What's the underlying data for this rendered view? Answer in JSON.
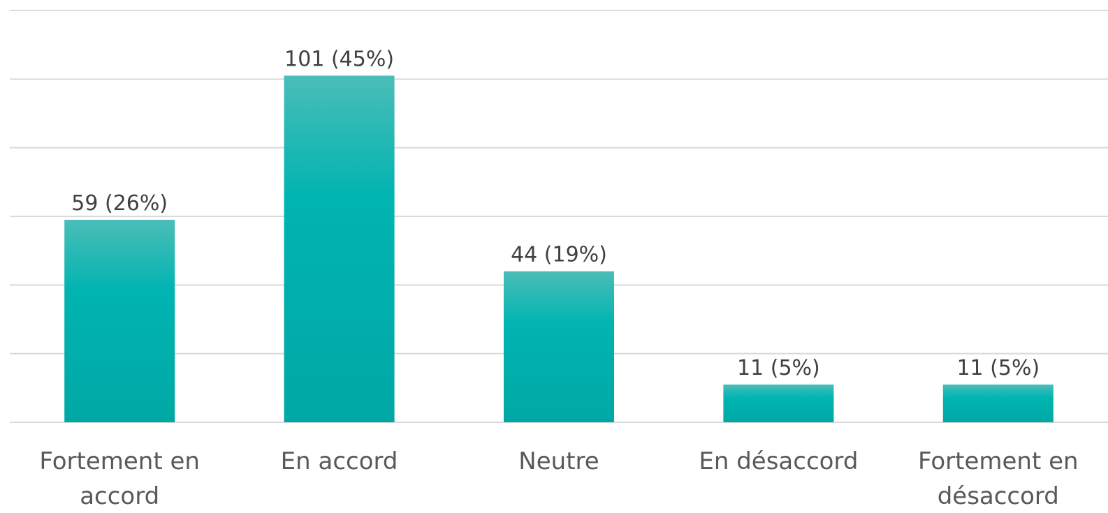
{
  "chart_data": {
    "type": "bar",
    "categories": [
      "Fortement en accord",
      "En accord",
      "Neutre",
      "En désaccord",
      "Fortement en désaccord"
    ],
    "values": [
      59,
      101,
      44,
      11,
      11
    ],
    "value_labels": [
      "59 (26%)",
      "101 (45%)",
      "44 (19%)",
      "11 (5%)",
      "11 (5%)"
    ],
    "color": "#00b2b0",
    "ylim": [
      0,
      120
    ],
    "yticks": [
      0,
      20,
      40,
      60,
      80,
      100,
      120
    ],
    "grid": true
  }
}
